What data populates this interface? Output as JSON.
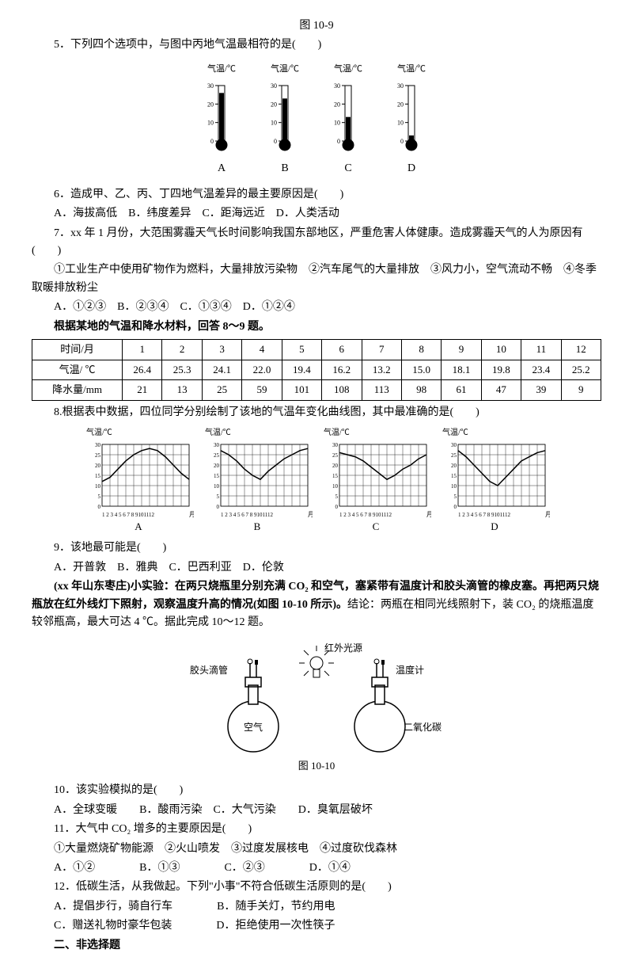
{
  "fig_label_top": "图 10-9",
  "q5": {
    "text": "5．下列四个选项中，与图中丙地气温最相符的是(　　)",
    "axis_label": "气温/℃",
    "ticks": [
      0,
      10,
      20,
      30
    ],
    "thermos": [
      {
        "letter": "A",
        "fill": 26
      },
      {
        "letter": "B",
        "fill": 23
      },
      {
        "letter": "C",
        "fill": 13
      },
      {
        "letter": "D",
        "fill": 3
      }
    ],
    "stroke": "#000",
    "fill_color": "#000",
    "bg": "#fff"
  },
  "q6": {
    "text": "6．造成甲、乙、丙、丁四地气温差异的最主要原因是(　　)",
    "opts": "A．海拔高低　B．纬度差异　C．距海远近　D．人类活动"
  },
  "q7": {
    "text": "7．xx 年 1 月份，大范围雾霾天气长时间影响我国东部地区，严重危害人体健康。造成雾霾天气的人为原因有(　　)",
    "items": "①工业生产中使用矿物作为燃料，大量排放污染物　②汽车尾气的大量排放　③风力小，空气流动不畅　④冬季取暖排放粉尘",
    "opts": "A．①②③　B．②③④　C．①③④　D．①②④"
  },
  "intro89": "根据某地的气温和降水材料，回答 8～9 题。",
  "table": {
    "headers": [
      "时间/月",
      "1",
      "2",
      "3",
      "4",
      "5",
      "6",
      "7",
      "8",
      "9",
      "10",
      "11",
      "12"
    ],
    "row_temp_label": "气温/ ℃",
    "row_temp": [
      "26.4",
      "25.3",
      "24.1",
      "22.0",
      "19.4",
      "16.2",
      "13.2",
      "15.0",
      "18.1",
      "19.8",
      "23.4",
      "25.2"
    ],
    "row_rain_label": "降水量/mm",
    "row_rain": [
      "21",
      "13",
      "25",
      "59",
      "101",
      "108",
      "113",
      "98",
      "61",
      "47",
      "39",
      "9"
    ]
  },
  "q8": {
    "text": "8.根据表中数据，四位同学分别绘制了该地的气温年变化曲线图，其中最准确的是(　　)",
    "axis_y": "气温/℃",
    "axis_x": "月",
    "xticks": "1 2 3 4 5 6 7 8 9101112",
    "yticks": [
      0,
      5,
      10,
      15,
      20,
      25,
      30
    ],
    "charts": [
      {
        "letter": "A",
        "pts": [
          [
            0,
            12
          ],
          [
            1,
            14
          ],
          [
            2,
            18
          ],
          [
            3,
            22
          ],
          [
            4,
            25
          ],
          [
            5,
            27
          ],
          [
            6,
            28
          ],
          [
            7,
            27
          ],
          [
            8,
            24
          ],
          [
            9,
            20
          ],
          [
            10,
            16
          ],
          [
            11,
            13
          ]
        ]
      },
      {
        "letter": "B",
        "pts": [
          [
            0,
            27
          ],
          [
            1,
            25
          ],
          [
            2,
            22
          ],
          [
            3,
            18
          ],
          [
            4,
            15
          ],
          [
            5,
            13
          ],
          [
            6,
            17
          ],
          [
            7,
            20
          ],
          [
            8,
            23
          ],
          [
            9,
            25
          ],
          [
            10,
            27
          ],
          [
            11,
            28
          ]
        ]
      },
      {
        "letter": "C",
        "pts": [
          [
            0,
            26
          ],
          [
            1,
            25
          ],
          [
            2,
            24
          ],
          [
            3,
            22
          ],
          [
            4,
            19
          ],
          [
            5,
            16
          ],
          [
            6,
            13
          ],
          [
            7,
            15
          ],
          [
            8,
            18
          ],
          [
            9,
            20
          ],
          [
            10,
            23
          ],
          [
            11,
            25
          ]
        ]
      },
      {
        "letter": "D",
        "pts": [
          [
            0,
            27
          ],
          [
            1,
            24
          ],
          [
            2,
            20
          ],
          [
            3,
            16
          ],
          [
            4,
            12
          ],
          [
            5,
            10
          ],
          [
            6,
            14
          ],
          [
            7,
            18
          ],
          [
            8,
            22
          ],
          [
            9,
            24
          ],
          [
            10,
            26
          ],
          [
            11,
            27
          ]
        ]
      }
    ],
    "grid_color": "#000",
    "line_color": "#000"
  },
  "q9": {
    "text": "9．该地最可能是(　　)",
    "opts": "A．开普敦　B．雅典　C．巴西利亚　D．伦敦"
  },
  "intro1012": {
    "prefix": "(xx 年山东枣庄)小实验：",
    "body": "在两只烧瓶里分别充满 CO₂ 和空气，塞紧带有温度计和胶头滴管的橡皮塞。再把两只烧瓶放在红外线灯下照射，观察温度升高的情况(如图 10-10 所示)。",
    "conclusion": "结论：两瓶在相同光线照射下，装 CO₂ 的烧瓶温度较邻瓶高，最大可达 4 ℃。据此完成 10～12 题。"
  },
  "experiment": {
    "dropper": "胶头滴管",
    "ir": "红外光源",
    "thermo": "温度计",
    "air": "空气",
    "co2": "二氧化碳",
    "fig": "图 10-10"
  },
  "q10": {
    "text": "10．该实验模拟的是(　　)",
    "opts": "A．全球变暖　　B．酸雨污染　C．大气污染　　D．臭氧层破坏"
  },
  "q11": {
    "text": "11．大气中 CO₂ 增多的主要原因是(　　)",
    "items": "①大量燃烧矿物能源　②火山喷发　③过度发展核电　④过度砍伐森林",
    "opts": "A．①②　　　　B．①③　　　　C．②③　　　　D．①④"
  },
  "q12": {
    "text": "12．低碳生活，从我做起。下列\"小事\"不符合低碳生活原则的是(　　)",
    "optA": "A．提倡步行，骑自行车",
    "optB": "B．随手关灯，节约用电",
    "optC": "C．赠送礼物时豪华包装",
    "optD": "D．拒绝使用一次性筷子"
  },
  "section2": "二、非选择题"
}
